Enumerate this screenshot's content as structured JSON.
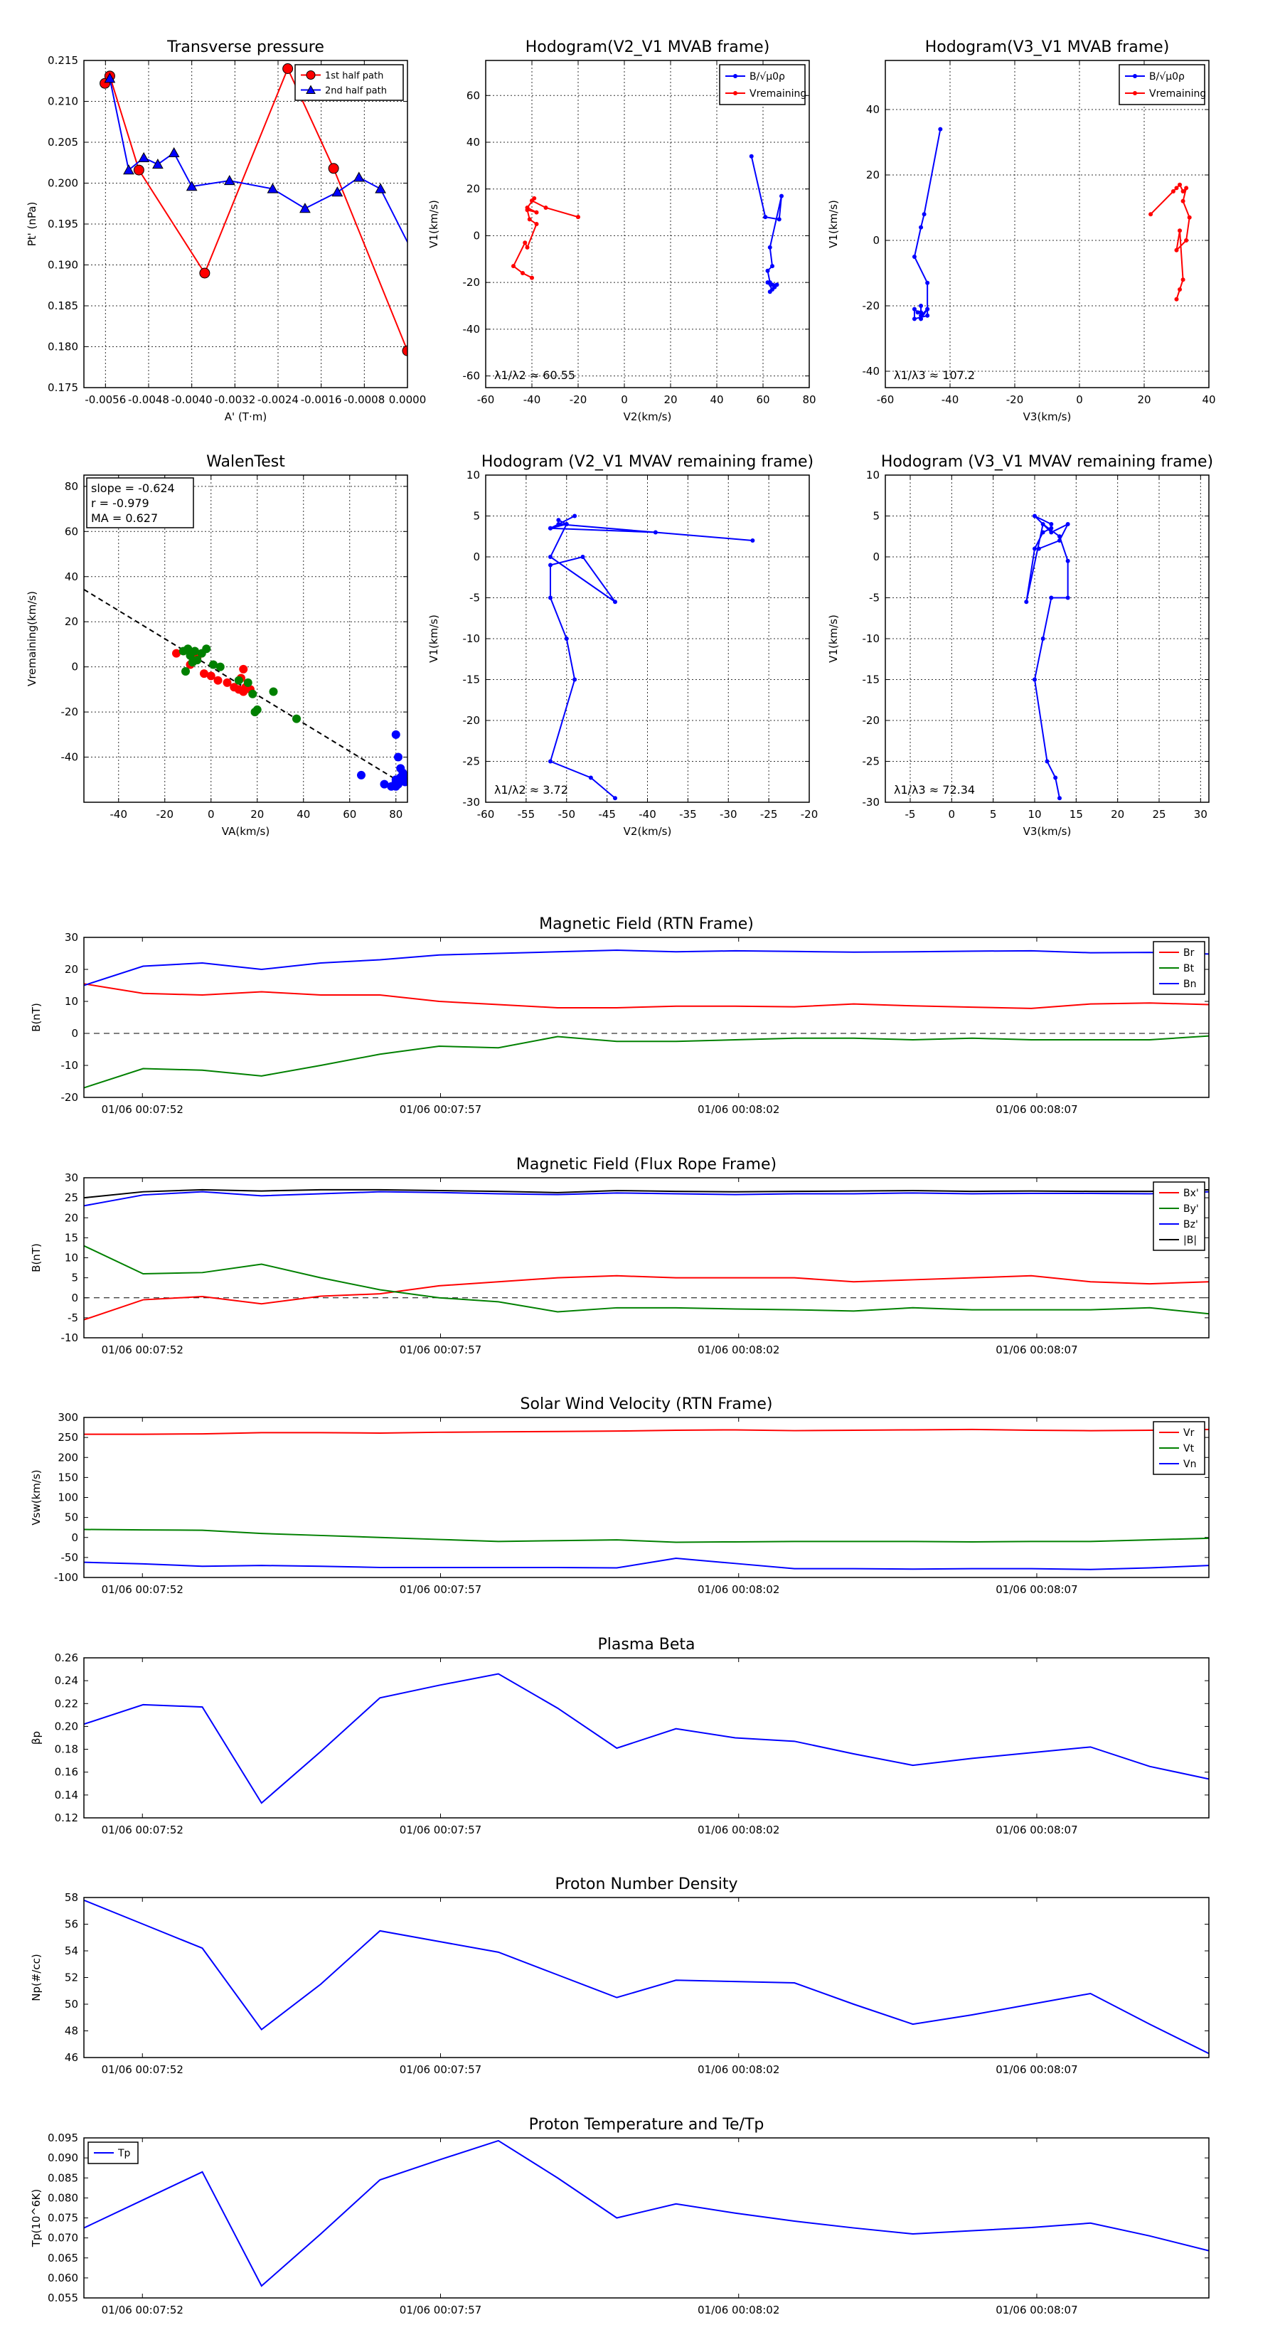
{
  "colors": {
    "red": "#ff0000",
    "green": "#008000",
    "blue": "#0000ff",
    "black": "#000000",
    "grid": "#000000"
  },
  "time_ticks": [
    "01/06 00:07:52",
    "01/06 00:07:57",
    "01/06 00:08:02",
    "01/06 00:08:07"
  ],
  "chart_data": [
    {
      "id": "pt",
      "type": "scatter-line",
      "title": "Transverse pressure",
      "xlabel": "A' (T·m)",
      "ylabel": "Pt' (nPa)",
      "xlim": [
        -0.006,
        0.0
      ],
      "ylim": [
        0.175,
        0.215
      ],
      "xticks": [
        -0.0056,
        -0.0048,
        -0.004,
        -0.0032,
        -0.0024,
        -0.0016,
        -0.0008,
        0.0
      ],
      "xtick_labels": [
        "-0.0056",
        "-0.0048",
        "-0.0040",
        "-0.0032",
        "-0.0024",
        "-0.0016",
        "-0.0008",
        "0.0000"
      ],
      "yticks": [
        0.175,
        0.18,
        0.185,
        0.19,
        0.195,
        0.2,
        0.205,
        0.21,
        0.215
      ],
      "ytick_labels": [
        "0.175",
        "0.180",
        "0.185",
        "0.190",
        "0.195",
        "0.200",
        "0.205",
        "0.210",
        "0.215"
      ],
      "legend": [
        "1st half path",
        "2nd half path"
      ],
      "series": [
        {
          "name": "1st half path",
          "color": "red",
          "marker": "circle",
          "x": [
            -0.00561,
            -0.00552,
            -0.00498,
            -0.00376,
            -0.00222,
            -0.00137,
            0.0
          ],
          "y": [
            0.2122,
            0.2131,
            0.2016,
            0.189,
            0.214,
            0.2018,
            0.1795
          ]
        },
        {
          "name": "2nd half path",
          "color": "blue",
          "marker": "triangle",
          "x": [
            -0.00552,
            -0.00517,
            -0.00489,
            -0.00463,
            -0.00433,
            -0.004,
            -0.0033,
            -0.0025,
            -0.0019,
            -0.0013,
            -0.0009,
            -0.0005,
            0.0001
          ],
          "y": [
            0.2128,
            0.2016,
            0.2031,
            0.2023,
            0.2037,
            0.1996,
            0.2003,
            0.1993,
            0.1969,
            0.1989,
            0.2007,
            0.1993,
            0.1915
          ]
        }
      ]
    },
    {
      "id": "h1",
      "type": "line",
      "title": "Hodogram(V2_V1 MVAB frame)",
      "xlabel": "V2(km/s)",
      "ylabel": "V1(km/s)",
      "xlim": [
        -60,
        80
      ],
      "ylim": [
        -65,
        75
      ],
      "xticks": [
        -60,
        -40,
        -20,
        0,
        20,
        40,
        60,
        80
      ],
      "yticks": [
        -60,
        -40,
        -20,
        0,
        20,
        40,
        60
      ],
      "legend": [
        "B/√μ0ρ",
        "Vremaining"
      ],
      "annotation": "λ1/λ2 ≈ 60.55",
      "series": [
        {
          "name": "B/√μ0ρ",
          "color": "blue",
          "x": [
            55,
            61,
            67,
            68,
            63,
            64,
            62,
            63,
            65,
            63,
            64,
            62,
            66,
            64
          ],
          "y": [
            34,
            8,
            7,
            17,
            -5,
            -13,
            -15,
            -20,
            -22,
            -24,
            -23,
            -20,
            -21,
            -21
          ]
        },
        {
          "name": "Vremaining",
          "color": "red",
          "x": [
            -20,
            -34,
            -40,
            -39,
            -42,
            -38,
            -42,
            -41,
            -38,
            -42,
            -43,
            -48,
            -44,
            -40
          ],
          "y": [
            8,
            12,
            15,
            16,
            12,
            10,
            11,
            7,
            5,
            -5,
            -3,
            -13,
            -16,
            -18
          ]
        }
      ]
    },
    {
      "id": "h2",
      "type": "line",
      "title": "Hodogram(V3_V1 MVAB frame)",
      "xlabel": "V3(km/s)",
      "ylabel": "V1(km/s)",
      "xlim": [
        -60,
        40
      ],
      "ylim": [
        -45,
        55
      ],
      "xticks": [
        -60,
        -40,
        -20,
        0,
        20,
        40
      ],
      "yticks": [
        -40,
        -20,
        0,
        20,
        40
      ],
      "legend": [
        "B/√μ0ρ",
        "Vremaining"
      ],
      "annotation": "λ1/λ3 ≈ 107.2",
      "series": [
        {
          "name": "B/√μ0ρ",
          "color": "blue",
          "x": [
            -43,
            -48,
            -49,
            -51,
            -47,
            -47,
            -49,
            -49,
            -49,
            -47,
            -47,
            -51,
            -51,
            -50,
            -49
          ],
          "y": [
            34,
            8,
            4,
            -5,
            -13,
            -21,
            -23,
            -20,
            -24,
            -21,
            -23,
            -24,
            -21,
            -22,
            -22
          ]
        },
        {
          "name": "Vremaining",
          "color": "red",
          "x": [
            22,
            29,
            30,
            31,
            32,
            33,
            32,
            34,
            33,
            30,
            31,
            32,
            31,
            30
          ],
          "y": [
            8,
            15,
            16,
            17,
            15,
            16,
            12,
            7,
            0,
            -3,
            3,
            -12,
            -15,
            -18
          ]
        }
      ]
    },
    {
      "id": "walen",
      "type": "scatter",
      "title": "WalenTest",
      "xlabel": "VA(km/s)",
      "ylabel": "Vremaining(km/s)",
      "xlim": [
        -55,
        85
      ],
      "ylim": [
        -60,
        85
      ],
      "xticks": [
        -40,
        -20,
        0,
        20,
        40,
        60,
        80
      ],
      "yticks": [
        -40,
        -20,
        0,
        20,
        40,
        60,
        80
      ],
      "stats": [
        "slope = -0.624",
        "r = -0.979",
        "MA = 0.627"
      ],
      "fit_line": {
        "x": [
          -55,
          80
        ],
        "y": [
          34.3,
          -49.9
        ]
      },
      "series": [
        {
          "name": "red",
          "color": "red",
          "x": [
            -15,
            -6,
            -9,
            -3,
            0,
            3,
            7,
            10,
            12,
            14,
            15,
            17,
            14,
            13
          ],
          "y": [
            6,
            4,
            1,
            -3,
            -4,
            -6,
            -7,
            -9,
            -10,
            -11,
            -9,
            -10,
            -1,
            -5
          ]
        },
        {
          "name": "green",
          "color": "green",
          "x": [
            -12,
            -9,
            -6,
            -10,
            -7,
            -4,
            -2,
            1,
            4,
            12,
            16,
            18,
            27,
            37,
            -11,
            -8,
            19,
            20
          ],
          "y": [
            7,
            5,
            3,
            8,
            7,
            6,
            8,
            1,
            0,
            -6,
            -7,
            -12,
            -11,
            -23,
            -2,
            2,
            -20,
            -19
          ]
        },
        {
          "name": "blue",
          "color": "blue",
          "x": [
            65,
            75,
            78,
            80,
            80,
            81,
            82,
            83,
            80,
            81,
            82,
            83,
            84,
            83,
            80
          ],
          "y": [
            -48,
            -52,
            -53,
            -50,
            -51,
            -52,
            -49,
            -48,
            -30,
            -40,
            -45,
            -47,
            -51,
            -49,
            -53
          ]
        }
      ]
    },
    {
      "id": "h3",
      "type": "line",
      "title": "Hodogram (V2_V1 MVAV remaining frame)",
      "xlabel": "V2(km/s)",
      "ylabel": "V1(km/s)",
      "xlim": [
        -60,
        -20
      ],
      "ylim": [
        -30,
        10
      ],
      "xticks": [
        -60,
        -55,
        -50,
        -45,
        -40,
        -35,
        -30,
        -25,
        -20
      ],
      "yticks": [
        -30,
        -25,
        -20,
        -15,
        -10,
        -5,
        0,
        5,
        10
      ],
      "annotation": "λ1/λ2 ≈ 3.72",
      "series": [
        {
          "name": "main",
          "color": "blue",
          "x": [
            -44,
            -47,
            -52,
            -49,
            -50,
            -52,
            -52,
            -48,
            -44,
            -52,
            -50,
            -52,
            -49,
            -52,
            -39,
            -27,
            -51,
            -50,
            -51
          ],
          "y": [
            -29.5,
            -27,
            -25,
            -15,
            -10,
            -5,
            -1,
            0,
            -5.5,
            0,
            4,
            3.5,
            5,
            3.5,
            3,
            2,
            4,
            4,
            4.5
          ]
        }
      ]
    },
    {
      "id": "h4",
      "type": "line",
      "title": "Hodogram (V3_V1 MVAV remaining frame)",
      "xlabel": "V3(km/s)",
      "ylabel": "V1(km/s)",
      "xlim": [
        -8,
        31
      ],
      "ylim": [
        -30,
        10
      ],
      "xticks": [
        -5,
        0,
        5,
        10,
        15,
        20,
        25,
        30
      ],
      "yticks": [
        -30,
        -25,
        -20,
        -15,
        -10,
        -5,
        0,
        5,
        10
      ],
      "annotation": "λ1/λ3 ≈ 72.34",
      "series": [
        {
          "name": "main",
          "color": "blue",
          "x": [
            13,
            12.5,
            11.5,
            10,
            11,
            12,
            14,
            14,
            13,
            11,
            9,
            10,
            11,
            12,
            12,
            10,
            12,
            14,
            13,
            10.5
          ],
          "y": [
            -29.5,
            -27,
            -25,
            -15,
            -10,
            -5,
            -5,
            -0.5,
            2.5,
            4,
            -5.5,
            1,
            3,
            3.5,
            4,
            5,
            3,
            4,
            2,
            1
          ]
        }
      ]
    },
    {
      "id": "bmag",
      "type": "time",
      "title": "Magnetic Field (RTN Frame)",
      "ylabel": "B(nT)",
      "ylim": [
        -20,
        30
      ],
      "yticks": [
        -20,
        -10,
        0,
        10,
        20,
        30
      ],
      "zero_line": true,
      "legend": [
        "Br",
        "Bt",
        "Bn"
      ],
      "series": [
        {
          "name": "Br",
          "color": "red",
          "values": [
            15.5,
            12.5,
            12,
            13,
            12,
            12,
            10,
            9,
            8,
            8,
            8.5,
            8.5,
            8.3,
            9.2,
            8.6,
            8.2,
            7.8,
            9.2,
            9.5,
            9
          ]
        },
        {
          "name": "Bt",
          "color": "green",
          "values": [
            -17,
            -11,
            -11.5,
            -13.3,
            -10,
            -6.5,
            -4,
            -4.5,
            -1,
            -2.5,
            -2.5,
            -2,
            -1.5,
            -1.5,
            -2,
            -1.5,
            -2,
            -2,
            -2,
            -0.8
          ]
        },
        {
          "name": "Bn",
          "color": "blue",
          "values": [
            15,
            21,
            22,
            20,
            22,
            23,
            24.5,
            25,
            25.5,
            26,
            25.5,
            25.8,
            25.6,
            25.4,
            25.5,
            25.7,
            25.8,
            25.2,
            25.3,
            24.8
          ]
        }
      ]
    },
    {
      "id": "bfr",
      "type": "time",
      "title": "Magnetic Field (Flux Rope Frame)",
      "ylabel": "B(nT)",
      "ylim": [
        -10,
        30
      ],
      "yticks": [
        -10,
        -5,
        0,
        5,
        10,
        15,
        20,
        25,
        30
      ],
      "zero_line": true,
      "legend": [
        "Bx'",
        "By'",
        "Bz'",
        "|B|"
      ],
      "series": [
        {
          "name": "Bx'",
          "color": "red",
          "values": [
            -5.5,
            -0.5,
            0.3,
            -1.5,
            0.4,
            1,
            3,
            4,
            5,
            5.5,
            5,
            5,
            5,
            4,
            4.5,
            5,
            5.5,
            4,
            3.5,
            4
          ]
        },
        {
          "name": "By'",
          "color": "green",
          "values": [
            13,
            6,
            6.3,
            8.4,
            5,
            2,
            0,
            -1,
            -3.5,
            -2.5,
            -2.5,
            -2.8,
            -3,
            -3.3,
            -2.5,
            -3,
            -3,
            -3,
            -2.5,
            -4
          ]
        },
        {
          "name": "Bz'",
          "color": "blue",
          "values": [
            23,
            25.7,
            26.5,
            25.5,
            26,
            26.5,
            26.3,
            26,
            25.8,
            26.2,
            26,
            25.8,
            26,
            26,
            26.2,
            26,
            26.1,
            26.1,
            26,
            26.5
          ]
        },
        {
          "name": "|B|",
          "color": "black",
          "values": [
            25,
            26.5,
            27,
            26.7,
            27,
            27,
            26.8,
            26.6,
            26.3,
            26.8,
            26.6,
            26.5,
            26.6,
            26.7,
            26.8,
            26.6,
            26.7,
            26.6,
            26.6,
            27
          ]
        }
      ]
    },
    {
      "id": "vsw",
      "type": "time",
      "title": "Solar Wind Velocity (RTN Frame)",
      "ylabel": "Vsw(km/s)",
      "ylim": [
        -100,
        300
      ],
      "yticks": [
        -100,
        -50,
        0,
        50,
        100,
        150,
        200,
        250,
        300
      ],
      "legend": [
        "Vr",
        "Vt",
        "Vn"
      ],
      "series": [
        {
          "name": "Vr",
          "color": "red",
          "values": [
            258,
            258,
            259,
            262,
            262,
            261,
            263,
            264,
            265,
            266,
            268,
            269,
            267,
            268,
            269,
            270,
            268,
            267,
            268,
            270
          ]
        },
        {
          "name": "Vt",
          "color": "green",
          "values": [
            20,
            19,
            18,
            10,
            5,
            0,
            -5,
            -10,
            -8,
            -6,
            -12,
            -11,
            -10,
            -10,
            -10,
            -11,
            -10,
            -10,
            -6,
            -2
          ]
        },
        {
          "name": "Vn",
          "color": "blue",
          "values": [
            -62,
            -66,
            -72,
            -70,
            -72,
            -75,
            -75,
            -75,
            -75,
            -76,
            -52,
            -65,
            -78,
            -78,
            -79,
            -78,
            -78,
            -80,
            -76,
            -70
          ]
        }
      ]
    },
    {
      "id": "beta",
      "type": "time",
      "title": "Plasma Beta",
      "ylabel": "βp",
      "ylim": [
        0.12,
        0.26
      ],
      "yticks": [
        0.12,
        0.14,
        0.16,
        0.18,
        0.2,
        0.22,
        0.24,
        0.26
      ],
      "ytick_labels": [
        "0.12",
        "0.14",
        "0.16",
        "0.18",
        "0.20",
        "0.22",
        "0.24",
        "0.26"
      ],
      "series": [
        {
          "name": "beta",
          "color": "blue",
          "values": [
            0.202,
            0.219,
            0.217,
            0.133,
            0.178,
            0.225,
            0.236,
            0.246,
            0.216,
            0.181,
            0.198,
            0.19,
            0.187,
            0.176,
            0.166,
            0.172,
            0.177,
            0.182,
            0.165,
            0.154
          ]
        }
      ]
    },
    {
      "id": "np",
      "type": "time",
      "title": "Proton Number Density",
      "ylabel": "Np(#/cc)",
      "ylim": [
        46,
        58
      ],
      "yticks": [
        46,
        48,
        50,
        52,
        54,
        56,
        58
      ],
      "series": [
        {
          "name": "np",
          "color": "blue",
          "values": [
            57.8,
            56,
            54.2,
            48.1,
            51.5,
            55.5,
            54.7,
            53.9,
            52.2,
            50.5,
            51.8,
            51.7,
            51.6,
            50,
            48.5,
            49.2,
            50,
            50.8,
            48.5,
            46.3
          ]
        }
      ]
    },
    {
      "id": "tp",
      "type": "time",
      "title": "Proton Temperature and Te/Tp",
      "ylabel": "Tp(10^6K)",
      "ylim": [
        0.055,
        0.095
      ],
      "yticks": [
        0.055,
        0.06,
        0.065,
        0.07,
        0.075,
        0.08,
        0.085,
        0.09,
        0.095
      ],
      "ytick_labels": [
        "0.055",
        "0.060",
        "0.065",
        "0.070",
        "0.075",
        "0.080",
        "0.085",
        "0.090",
        "0.095"
      ],
      "legend": [
        "Tp"
      ],
      "series": [
        {
          "name": "Tp",
          "color": "blue",
          "values": [
            0.0725,
            0.0795,
            0.0865,
            0.058,
            0.071,
            0.0845,
            0.0895,
            0.0943,
            0.085,
            0.075,
            0.0785,
            0.0762,
            0.0742,
            0.0725,
            0.071,
            0.0718,
            0.0726,
            0.0737,
            0.0705,
            0.0668
          ]
        }
      ]
    }
  ]
}
